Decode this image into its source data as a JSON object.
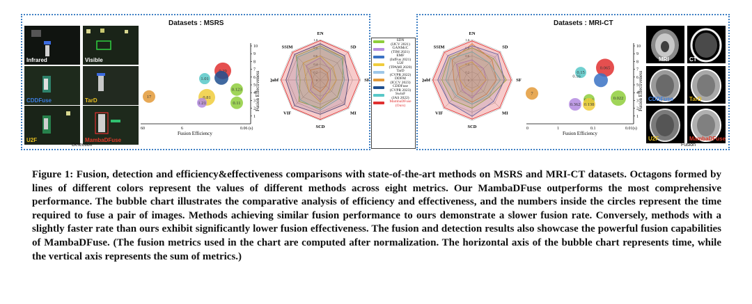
{
  "left_panel": {
    "title": "Datasets : MSRS",
    "images": [
      {
        "label": "Infrared",
        "color": "#ffffff"
      },
      {
        "label": "Visible",
        "color": "#ffffff"
      },
      {
        "label": "CDDFuse",
        "color": "#3b7de0"
      },
      {
        "label": "TarD",
        "color": "#e8c020"
      },
      {
        "label": "U2F",
        "color": "#e8c020"
      },
      {
        "label": "MambaDFuse",
        "color": "#e03a2a"
      }
    ],
    "images_caption": "Detection",
    "radar_axes": [
      "EN",
      "SD",
      "SF",
      "MI",
      "SCD",
      "VIF",
      "Qabf",
      "SSIM"
    ],
    "radar_ticks": [
      "0",
      "0.2",
      "0.4",
      "0.6",
      "0.8",
      "1.0"
    ],
    "bubble": {
      "xlabel": "Fusion Efficiency",
      "ylabel": "Fusion Effectiveness",
      "x_tick_left": "60",
      "x_tick_mid": "6",
      "x_tick_right": "0.06 (s)",
      "y_ticks": [
        "1",
        "2",
        "3",
        "4",
        "5",
        "6",
        "7",
        "8",
        "9",
        "10"
      ]
    }
  },
  "right_panel": {
    "title": "Datasets : MRI-CT",
    "images": [
      {
        "label": "MRI",
        "color": "#ffffff"
      },
      {
        "label": "CT",
        "color": "#ffffff"
      },
      {
        "label": "CDDFuse",
        "color": "#3b7de0"
      },
      {
        "label": "TarD",
        "color": "#e8c020"
      },
      {
        "label": "U2F",
        "color": "#e8c020"
      },
      {
        "label": "MambaDFuse",
        "color": "#e03a2a"
      }
    ],
    "images_caption": "Fusion",
    "radar_axes": [
      "EN",
      "SD",
      "SF",
      "MI",
      "SCD",
      "VIF",
      "Qabf",
      "SSIM"
    ],
    "radar_ticks": [
      "0",
      "0.2",
      "0.4",
      "0.6",
      "0.8",
      "1.0"
    ],
    "bubble": {
      "xlabel": "Fusion Efficiency",
      "ylabel": "Fusion Effectiveness",
      "x_tick_left": "0",
      "x_tick_mid": "1",
      "x_tick_mid2": "0.1",
      "x_tick_right": "0.01(s)",
      "y_ticks": [
        "1",
        "2",
        "3",
        "4",
        "5",
        "6",
        "7",
        "8",
        "9",
        "10"
      ]
    }
  },
  "legend": [
    {
      "name": "SDN",
      "venue": "(IJCV 2021)",
      "color": "#8fce3c"
    },
    {
      "name": "GANMcC",
      "venue": "(TIM 2021)",
      "color": "#b48be0"
    },
    {
      "name": "EMF",
      "venue": "(InfFus 2021)",
      "color": "#3a72c4"
    },
    {
      "name": "U2F",
      "venue": "(TPAMI 2020)",
      "color": "#f0cc3c"
    },
    {
      "name": "TarD",
      "venue": "(CVPR 2022)",
      "color": "#9ec7e8"
    },
    {
      "name": "DDFM",
      "venue": "(ICCV 2023)",
      "color": "#e39a38"
    },
    {
      "name": "CDDFuse",
      "venue": "(CVPR 2023)",
      "color": "#1f4f8f"
    },
    {
      "name": "SwinF",
      "venue": "(JAS 2022)",
      "color": "#58c8c8"
    },
    {
      "name": "MambaDFuse",
      "venue": "(Ours)",
      "color": "#e03030"
    }
  ],
  "chart_data": [
    {
      "type": "scatter",
      "title": "",
      "xlabel": "Fusion Efficiency",
      "ylabel": "Fusion Effectiveness",
      "ylim": [
        0,
        10
      ],
      "points": [
        {
          "label": "17",
          "x": 17,
          "y": 3.5,
          "color": "#e39a38"
        },
        {
          "label": "1.01",
          "x": 1.01,
          "y": 5.8,
          "color": "#58c8c8"
        },
        {
          "label": "0.81",
          "x": 0.81,
          "y": 3.4,
          "color": "#f0cc3c"
        },
        {
          "label": "1.21",
          "x": 1.21,
          "y": 2.7,
          "color": "#b48be0"
        },
        {
          "label": "0.29",
          "x": 0.29,
          "y": 6.8,
          "color": "#e03030"
        },
        {
          "label": "",
          "x": 0.27,
          "y": 5.9,
          "color": "#1f4f8f"
        },
        {
          "label": "0.123",
          "x": 0.123,
          "y": 4.4,
          "color": "#8fce3c"
        },
        {
          "label": "0.11",
          "x": 0.11,
          "y": 2.7,
          "color": "#8fce3c"
        }
      ]
    },
    {
      "type": "scatter",
      "title": "",
      "xlabel": "Fusion Efficiency",
      "ylabel": "Fusion Effectiveness",
      "ylim": [
        0,
        10
      ],
      "points": [
        {
          "label": "7",
          "x": 7,
          "y": 3.9,
          "color": "#e39a38"
        },
        {
          "label": "0.15",
          "x": 0.15,
          "y": 6.6,
          "color": "#58c8c8"
        },
        {
          "label": "0.16",
          "x": 0.16,
          "y": 6.1,
          "color": "#ffffff"
        },
        {
          "label": "0.065",
          "x": 0.065,
          "y": 7.2,
          "color": "#e03030"
        },
        {
          "label": "",
          "x": 0.06,
          "y": 5.6,
          "color": "#3a72c4"
        },
        {
          "label": "0.131",
          "x": 0.131,
          "y": 3.1,
          "color": "#8fce3c"
        },
        {
          "label": "0.138",
          "x": 0.138,
          "y": 2.5,
          "color": "#f0cc3c"
        },
        {
          "label": "0.362",
          "x": 0.362,
          "y": 2.5,
          "color": "#b48be0"
        },
        {
          "label": "0.022",
          "x": 0.022,
          "y": 3.3,
          "color": "#8fce3c"
        }
      ]
    }
  ],
  "caption": {
    "lead": "Figure 1: Fusion, detection and efficiency&effectiveness comparisons with state-of-the-art methods on MSRS and MRI-CT datasets. Octagons formed by lines of different colors represent the values of different methods across eight metrics. Our MambaDFuse outperforms the most comprehensive performance. The bubble chart illustrates the comparative analysis of efficiency and effectiveness, and the numbers inside the circles represent the time required to fuse a pair of images. Methods achieving similar fusion performance to ours demonstrate a slower fusion rate. Conversely, methods with a slightly faster rate than ours exhibit significantly lower fusion effectiveness. The fusion and detection results also showcase the powerful fusion capabilities of MambaDFuse.",
    "tail": " (The fusion metrics used in the chart are computed after normalization. The horizontal axis of the bubble chart represents time, while the vertical axis represents the sum of metrics.)"
  }
}
